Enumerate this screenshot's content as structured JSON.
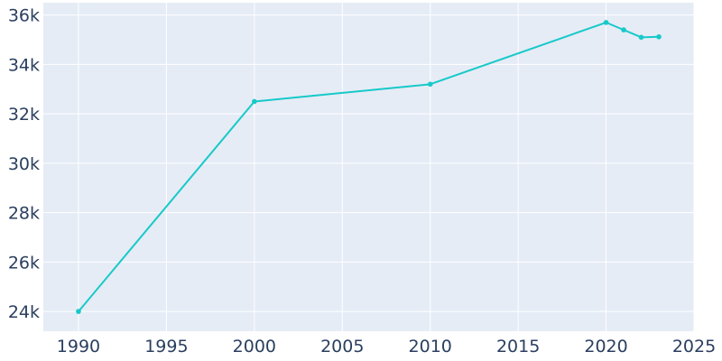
{
  "colors": {
    "plot_background": "#e5ecf6",
    "gridline": "#ffffff",
    "line": "#17c9c9",
    "tick_text": "#2a3f5f"
  },
  "chart_data": {
    "type": "line",
    "title": "",
    "xlabel": "",
    "ylabel": "",
    "grid": true,
    "xlim": [
      1988,
      2025
    ],
    "ylim": [
      23200,
      36500
    ],
    "xticks": [
      1990,
      1995,
      2000,
      2005,
      2010,
      2015,
      2020,
      2025
    ],
    "xtick_labels": [
      "1990",
      "1995",
      "2000",
      "2005",
      "2010",
      "2015",
      "2020",
      "2025"
    ],
    "yticks": [
      24000,
      26000,
      28000,
      30000,
      32000,
      34000,
      36000
    ],
    "ytick_labels": [
      "24k",
      "26k",
      "28k",
      "30k",
      "32k",
      "34k",
      "36k"
    ],
    "series": [
      {
        "x": [
          1990,
          2000,
          2010,
          2020,
          2021,
          2022,
          2023
        ],
        "y": [
          24000,
          32500,
          33200,
          35700,
          35400,
          35100,
          35120
        ]
      }
    ]
  }
}
